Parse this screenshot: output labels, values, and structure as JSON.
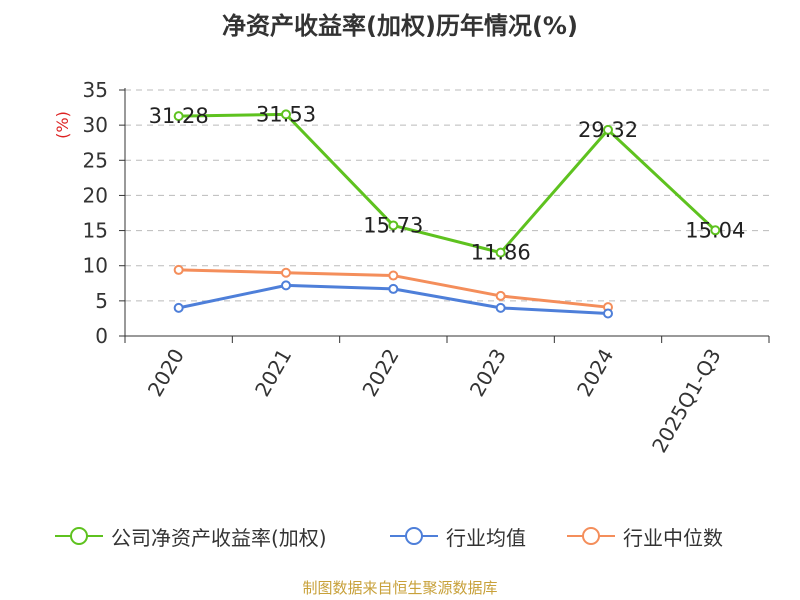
{
  "title": "净资产收益率(加权)历年情况(%)",
  "source": "制图数据来自恒生聚源数据库",
  "chart_data": {
    "type": "line",
    "title": "净资产收益率(加权)历年情况(%)",
    "ylabel": "(%)",
    "xlabel": "",
    "ylim": [
      0,
      35
    ],
    "yticks": [
      0,
      5,
      10,
      15,
      20,
      25,
      30,
      35
    ],
    "categories": [
      "2020",
      "2021",
      "2022",
      "2023",
      "2024",
      "2025Q1-Q3"
    ],
    "grid": true,
    "legend_position": "bottom",
    "series": [
      {
        "name": "公司净资产收益率(加权)",
        "color": "#5ec21f",
        "values": [
          31.28,
          31.53,
          15.73,
          11.86,
          29.32,
          15.04
        ],
        "labels": [
          "31.28",
          "31.53",
          "15.73",
          "11.86",
          "29.32",
          "15.04"
        ],
        "segments": [
          [
            0,
            5
          ]
        ]
      },
      {
        "name": "行业均值",
        "color": "#4e7fd9",
        "values": [
          4.0,
          7.2,
          6.7,
          4.0,
          3.2,
          null
        ],
        "segments": [
          [
            0,
            4
          ]
        ]
      },
      {
        "name": "行业中位数",
        "color": "#f48e5b",
        "values": [
          9.4,
          9.0,
          8.6,
          5.7,
          4.1,
          null
        ],
        "segments": [
          [
            0,
            4
          ]
        ]
      }
    ]
  }
}
